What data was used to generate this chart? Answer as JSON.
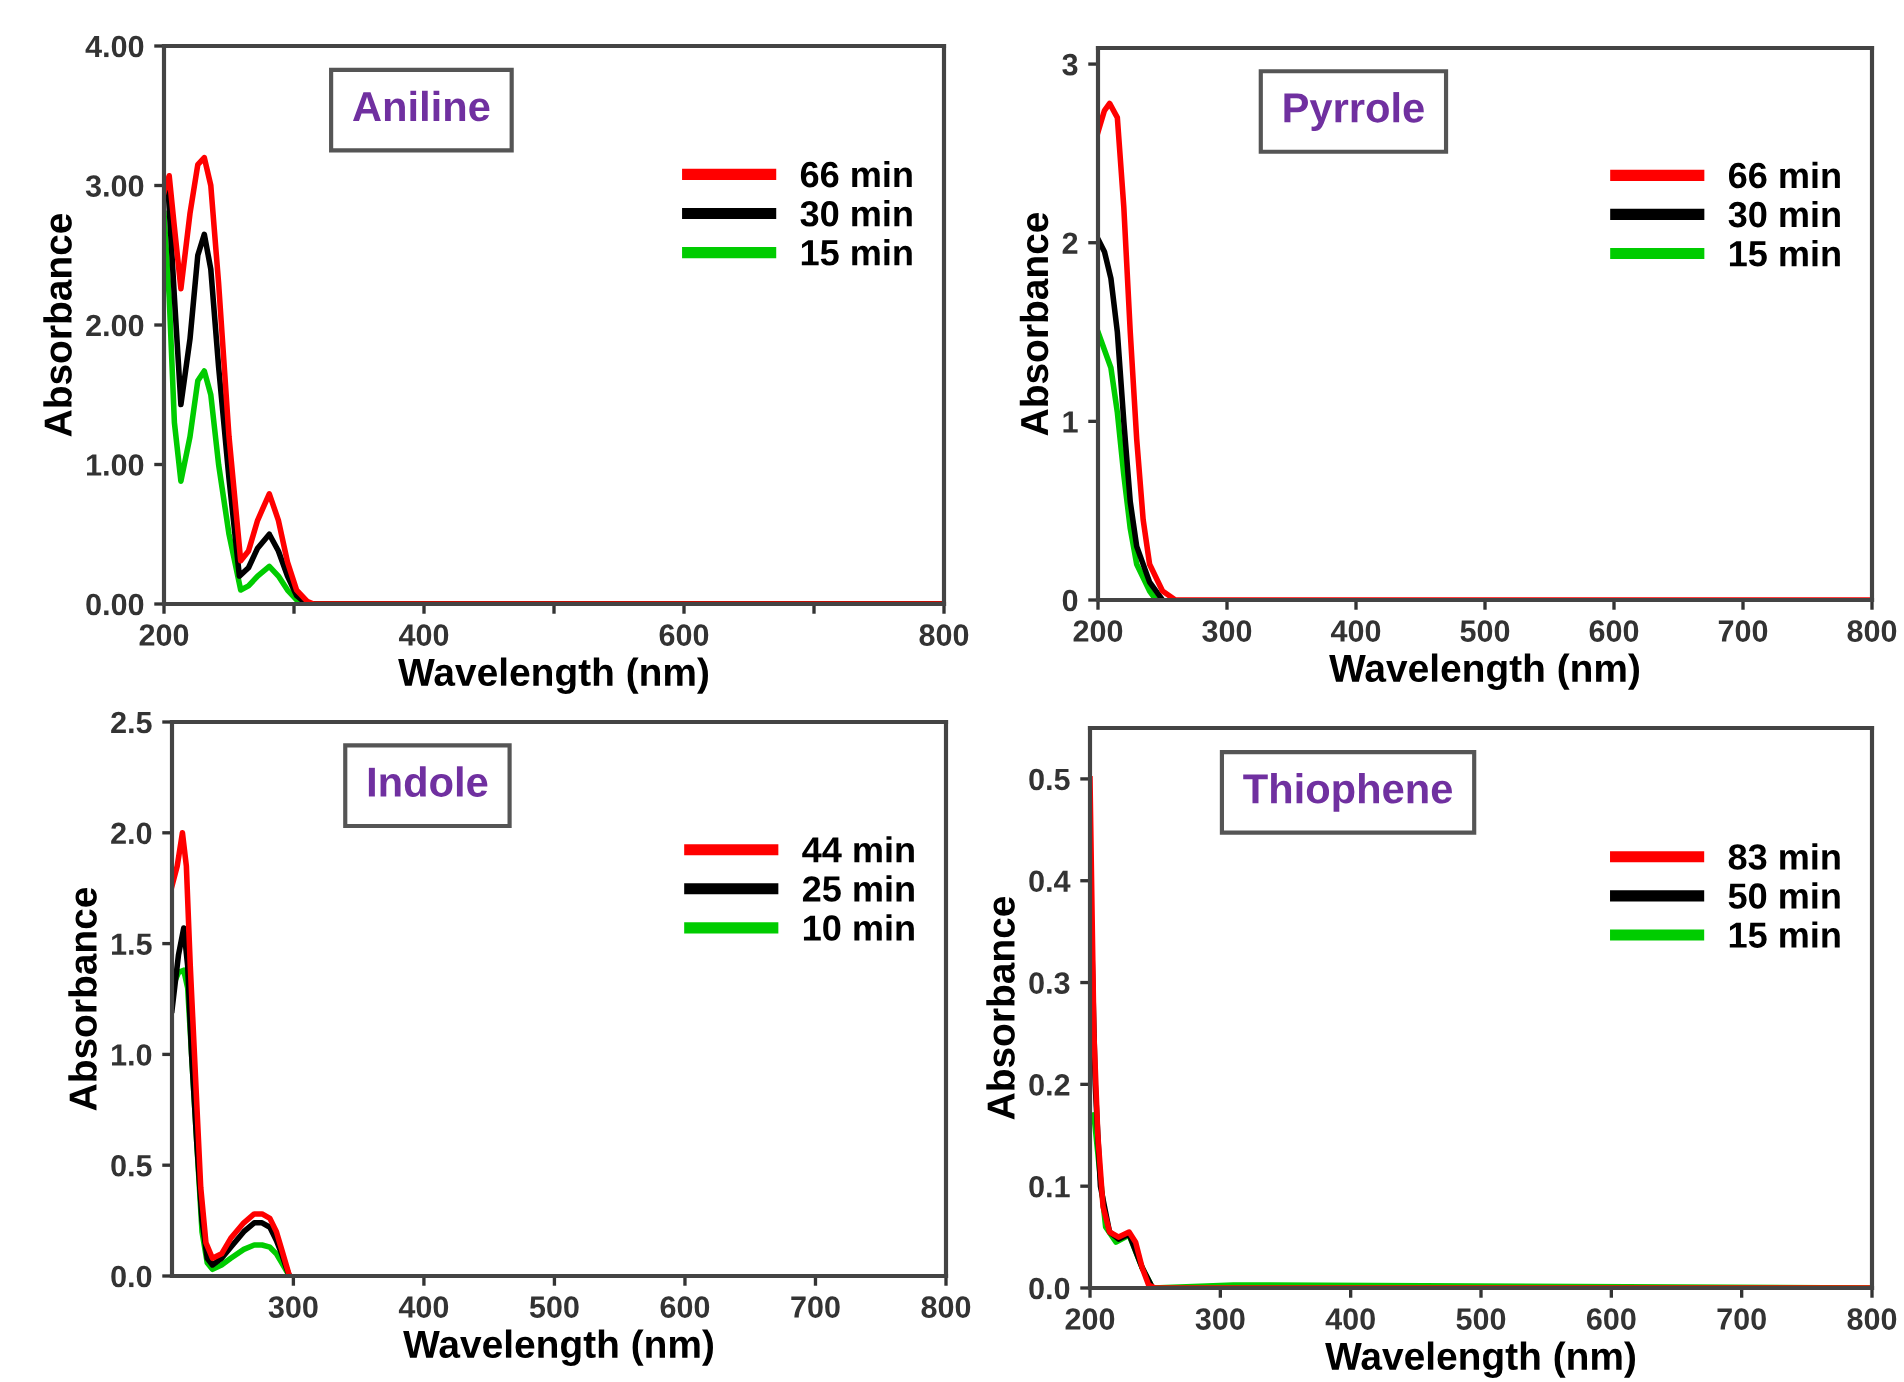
{
  "chart_data": [
    {
      "type": "line",
      "title": "Aniline",
      "xlabel": "Wavelength (nm)",
      "ylabel": "Absorbance",
      "xlim": [
        200,
        800
      ],
      "ylim": [
        0,
        4
      ],
      "xticks": [
        200,
        {
          "value": 300,
          "label": null
        },
        400,
        {
          "value": 500,
          "label": null
        },
        600,
        {
          "value": 700,
          "label": null
        },
        800
      ],
      "yticks": [
        {
          "value": 0,
          "label": "0.00"
        },
        {
          "value": 1,
          "label": "1.00"
        },
        {
          "value": 2,
          "label": "2.00"
        },
        {
          "value": 3,
          "label": "3.00"
        },
        {
          "value": 4,
          "label": "4.00"
        }
      ],
      "legend": "top right",
      "grid": false,
      "series": [
        {
          "name": "66 min",
          "color": "#ff0000",
          "x": [
            200,
            204,
            208,
            213,
            220,
            226,
            231,
            236,
            242,
            250,
            259,
            265,
            272,
            281,
            288,
            295,
            302,
            310,
            315,
            400,
            800
          ],
          "values": [
            2.95,
            3.07,
            2.7,
            2.26,
            2.8,
            3.15,
            3.2,
            3.0,
            2.3,
            1.2,
            0.31,
            0.38,
            0.6,
            0.79,
            0.6,
            0.3,
            0.1,
            0.02,
            0,
            0,
            0
          ]
        },
        {
          "name": "30 min",
          "color": "#000000",
          "x": [
            200,
            203,
            208,
            213,
            220,
            226,
            231,
            236,
            242,
            250,
            258,
            265,
            272,
            281,
            288,
            295,
            302,
            310,
            400,
            800
          ],
          "values": [
            2.95,
            3.0,
            2.2,
            1.43,
            1.9,
            2.5,
            2.65,
            2.4,
            1.7,
            0.9,
            0.2,
            0.26,
            0.4,
            0.5,
            0.38,
            0.2,
            0.06,
            0,
            0,
            0
          ]
        },
        {
          "name": "15 min",
          "color": "#00cc00",
          "x": [
            200,
            204,
            208,
            213,
            220,
            226,
            231,
            236,
            242,
            250,
            259,
            265,
            272,
            281,
            288,
            295,
            305,
            400,
            800
          ],
          "values": [
            2.8,
            2.2,
            1.3,
            0.88,
            1.2,
            1.6,
            1.67,
            1.5,
            1.0,
            0.5,
            0.1,
            0.13,
            0.2,
            0.27,
            0.2,
            0.1,
            0,
            0,
            0
          ]
        }
      ]
    },
    {
      "type": "line",
      "title": "Pyrrole",
      "xlabel": "Wavelength (nm)",
      "ylabel": "Absorbance",
      "xlim": [
        200,
        800
      ],
      "ylim": [
        0,
        3.09
      ],
      "xticks": [
        200,
        300,
        400,
        500,
        600,
        700,
        800
      ],
      "yticks": [
        0,
        1,
        2,
        3
      ],
      "legend": "top right",
      "grid": false,
      "series": [
        {
          "name": "66 min",
          "color": "#ff0000",
          "x": [
            200,
            205,
            209,
            215,
            220,
            225,
            230,
            235,
            240,
            250,
            260,
            800
          ],
          "values": [
            2.62,
            2.74,
            2.78,
            2.7,
            2.2,
            1.5,
            0.9,
            0.45,
            0.2,
            0.05,
            0,
            0
          ]
        },
        {
          "name": "30 min",
          "color": "#000000",
          "x": [
            200,
            205,
            210,
            215,
            220,
            225,
            230,
            240,
            250
          ],
          "values": [
            2.02,
            1.95,
            1.8,
            1.5,
            1.0,
            0.55,
            0.3,
            0.1,
            0
          ]
        },
        {
          "name": "15 min",
          "color": "#00cc00",
          "x": [
            200,
            210,
            215,
            220,
            225,
            230,
            240,
            245
          ],
          "values": [
            1.5,
            1.3,
            1.05,
            0.7,
            0.4,
            0.2,
            0.05,
            0
          ]
        }
      ]
    },
    {
      "type": "line",
      "title": "Indole",
      "xlabel": "Wavelength (nm)",
      "ylabel": "Absorbance",
      "xlim": [
        207,
        800
      ],
      "ylim": [
        0,
        2.5
      ],
      "xticks": [
        300,
        400,
        500,
        600,
        700,
        800
      ],
      "yticks": [
        {
          "value": 0,
          "label": "0.0"
        },
        {
          "value": 0.5,
          "label": "0.5"
        },
        {
          "value": 1,
          "label": "1.0"
        },
        {
          "value": 1.5,
          "label": "1.5"
        },
        {
          "value": 2,
          "label": "2.0"
        },
        {
          "value": 2.5,
          "label": "2.5"
        }
      ],
      "legend": "top right",
      "grid": false,
      "series": [
        {
          "name": "44 min",
          "color": "#ff0000",
          "x": [
            207,
            211,
            215,
            218,
            221,
            225,
            229,
            233,
            238,
            245,
            252,
            262,
            270,
            276,
            282,
            287,
            291,
            295,
            297
          ],
          "values": [
            1.76,
            1.85,
            2.0,
            1.85,
            1.4,
            0.9,
            0.4,
            0.15,
            0.08,
            0.1,
            0.17,
            0.24,
            0.28,
            0.28,
            0.26,
            0.2,
            0.12,
            0.04,
            0
          ]
        },
        {
          "name": "25 min",
          "color": "#000000",
          "x": [
            207,
            212,
            216,
            219,
            222,
            226,
            230,
            234,
            238,
            245,
            252,
            262,
            270,
            276,
            282,
            287,
            291,
            295,
            297
          ],
          "values": [
            1.2,
            1.45,
            1.57,
            1.4,
            1.0,
            0.6,
            0.25,
            0.08,
            0.05,
            0.08,
            0.13,
            0.2,
            0.24,
            0.24,
            0.22,
            0.16,
            0.1,
            0.03,
            0
          ]
        },
        {
          "name": "10 min",
          "color": "#00cc00",
          "x": [
            207,
            212,
            216,
            219,
            222,
            226,
            230,
            234,
            238,
            245,
            252,
            262,
            270,
            276,
            282,
            287,
            291,
            295,
            297
          ],
          "values": [
            1.3,
            1.37,
            1.38,
            1.3,
            1.0,
            0.6,
            0.2,
            0.06,
            0.03,
            0.05,
            0.08,
            0.12,
            0.14,
            0.14,
            0.13,
            0.1,
            0.06,
            0.02,
            0
          ]
        }
      ]
    },
    {
      "type": "line",
      "title": "Thiophene",
      "xlabel": "Wavelength (nm)",
      "ylabel": "Absorbance",
      "xlim": [
        200,
        800
      ],
      "ylim": [
        0,
        0.55
      ],
      "xticks": [
        200,
        300,
        400,
        500,
        600,
        700,
        800
      ],
      "yticks": [
        {
          "value": 0,
          "label": "0.0"
        },
        {
          "value": 0.1,
          "label": "0.1"
        },
        {
          "value": 0.2,
          "label": "0.2"
        },
        {
          "value": 0.3,
          "label": "0.3"
        },
        {
          "value": 0.4,
          "label": "0.4"
        },
        {
          "value": 0.5,
          "label": "0.5"
        }
      ],
      "legend": "top right",
      "grid": false,
      "series": [
        {
          "name": "83 min",
          "color": "#ff0000",
          "x": [
            200,
            203,
            206,
            210,
            215,
            222,
            230,
            235,
            240,
            245,
            250,
            800
          ],
          "values": [
            0.5,
            0.25,
            0.15,
            0.08,
            0.055,
            0.05,
            0.055,
            0.045,
            0.02,
            0.003,
            0,
            0
          ]
        },
        {
          "name": "50 min",
          "color": "#000000",
          "x": [
            201,
            204,
            208,
            215,
            222,
            230,
            240,
            248
          ],
          "values": [
            0.36,
            0.2,
            0.1,
            0.055,
            0.048,
            0.053,
            0.02,
            0
          ]
        },
        {
          "name": "15 min",
          "color": "#00cc00",
          "x": [
            203,
            207,
            212,
            220,
            230,
            240,
            248,
            310,
            800
          ],
          "values": [
            0.17,
            0.12,
            0.06,
            0.045,
            0.052,
            0.02,
            0,
            0.003,
            0
          ]
        }
      ]
    }
  ]
}
